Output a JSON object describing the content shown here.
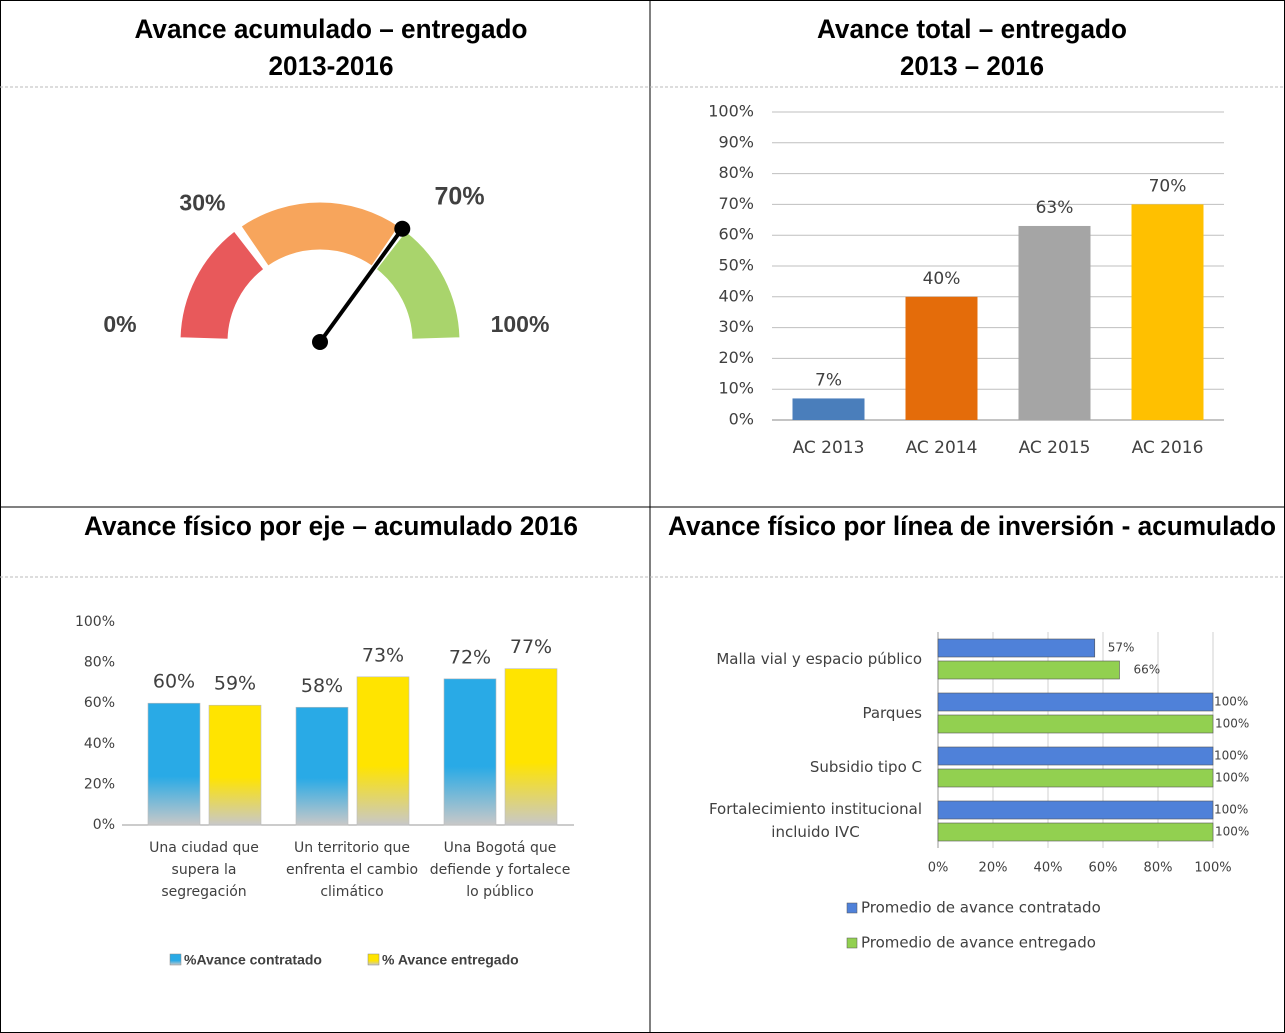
{
  "chart_data": [
    {
      "type": "gauge",
      "title": "Avance acumulado – entregado",
      "subtitle": "2013-2016",
      "xlim": [
        0,
        100
      ],
      "ticks": [
        {
          "value": 0,
          "label": "0%"
        },
        {
          "value": 30,
          "label": "30%"
        },
        {
          "value": 100,
          "label": "100%"
        }
      ],
      "bands": [
        {
          "to": 30,
          "color": "#e8595b"
        },
        {
          "to": 70,
          "color": "#f7a55c"
        },
        {
          "to": 100,
          "color": "#a9d46c"
        }
      ],
      "value": 70,
      "value_label": "70%",
      "value_color": "#2e75b6"
    },
    {
      "type": "bar",
      "title": "Avance total – entregado",
      "subtitle": "2013 – 2016",
      "categories": [
        "AC 2013",
        "AC 2014",
        "AC 2015",
        "AC 2016"
      ],
      "values": [
        7,
        40,
        63,
        70
      ],
      "value_labels": [
        "7%",
        "40%",
        "63%",
        "70%"
      ],
      "colors": [
        "#4a7ebb",
        "#e46c0a",
        "#a5a5a5",
        "#ffc000"
      ],
      "ylim": [
        0,
        100
      ],
      "yticks": [
        {
          "value": 0,
          "label": "0%"
        },
        {
          "value": 10,
          "label": "10%"
        },
        {
          "value": 20,
          "label": "20%"
        },
        {
          "value": 30,
          "label": "30%"
        },
        {
          "value": 40,
          "label": "40%"
        },
        {
          "value": 50,
          "label": "50%"
        },
        {
          "value": 60,
          "label": "60%"
        },
        {
          "value": 70,
          "label": "70%"
        },
        {
          "value": 80,
          "label": "80%"
        },
        {
          "value": 90,
          "label": "90%"
        },
        {
          "value": 100,
          "label": "100%"
        }
      ],
      "grid": true
    },
    {
      "type": "grouped_bar",
      "title": "Avance físico por eje – acumulado 2016",
      "categories": [
        "Una ciudad que\nsupera la\nsegregación",
        "Un territorio que\nenfrenta el cambio\nclimático",
        "Una Bogotá que\ndefiende y fortalece\nlo público"
      ],
      "series": [
        {
          "name": "%Avance contratado",
          "color": "#29aae6",
          "values": [
            60,
            58,
            72
          ],
          "value_labels": [
            "60%",
            "58%",
            "72%"
          ]
        },
        {
          "name": "% Avance entregado",
          "color": "#ffe400",
          "values": [
            59,
            73,
            77
          ],
          "value_labels": [
            "59%",
            "73%",
            "77%"
          ]
        }
      ],
      "ylim": [
        0,
        100
      ],
      "yticks": [
        {
          "value": 0,
          "label": "0%"
        },
        {
          "value": 20,
          "label": "20%"
        },
        {
          "value": 40,
          "label": "40%"
        },
        {
          "value": 60,
          "label": "60%"
        },
        {
          "value": 80,
          "label": "80%"
        },
        {
          "value": 100,
          "label": "100%"
        }
      ]
    },
    {
      "type": "hbar",
      "title": "Avance físico por línea de inversión - acumulado",
      "categories": [
        "Malla vial y espacio público",
        "Parques",
        "Subsidio tipo C",
        "Fortalecimiento institucional\nincluido IVC"
      ],
      "series": [
        {
          "name": "Promedio de avance contratado",
          "color": "#4f81d9",
          "values": [
            57,
            100,
            100,
            100
          ],
          "value_labels": [
            "57%",
            "100%",
            "100%",
            "100%"
          ]
        },
        {
          "name": "Promedio de avance entregado",
          "color": "#92d050",
          "values": [
            66,
            100,
            100,
            100
          ],
          "value_labels": [
            "66%",
            "100%",
            "100%",
            "100%"
          ]
        }
      ],
      "xlim": [
        0,
        100
      ],
      "xticks": [
        {
          "value": 0,
          "label": "0%"
        },
        {
          "value": 20,
          "label": "20%"
        },
        {
          "value": 40,
          "label": "40%"
        },
        {
          "value": 60,
          "label": "60%"
        },
        {
          "value": 80,
          "label": "80%"
        },
        {
          "value": 100,
          "label": "100%"
        }
      ],
      "grid": true
    }
  ]
}
